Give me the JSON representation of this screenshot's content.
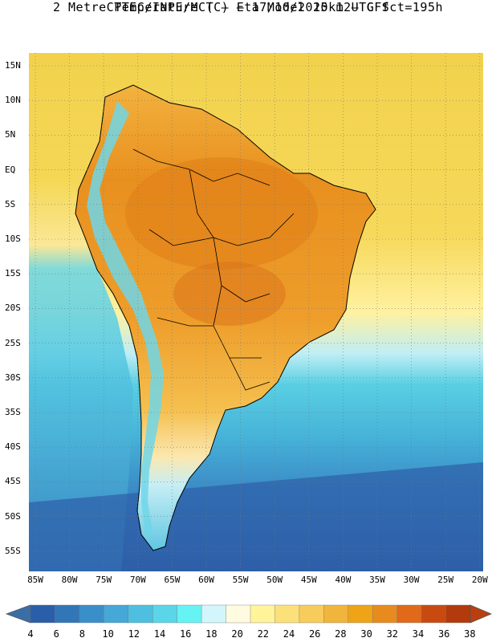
{
  "title_line1": "CPTEC/INPE/MCT –  Eta Model 15km – GFS",
  "title_line2": "2 Metre Temperature (C) – 17/10/2020 12UTC fct=195h",
  "lat_labels": [
    "15N",
    "10N",
    "5N",
    "EQ",
    "5S",
    "10S",
    "15S",
    "20S",
    "25S",
    "30S",
    "35S",
    "40S",
    "45S",
    "50S",
    "55S"
  ],
  "lon_labels": [
    "85W",
    "80W",
    "75W",
    "70W",
    "65W",
    "60W",
    "55W",
    "50W",
    "45W",
    "40W",
    "35W",
    "30W",
    "25W",
    "20W"
  ],
  "colorbar": {
    "labels": [
      "4",
      "6",
      "8",
      "10",
      "12",
      "14",
      "16",
      "18",
      "20",
      "22",
      "24",
      "26",
      "28",
      "30",
      "32",
      "34",
      "36",
      "38"
    ],
    "colors": [
      "#2a5ea8",
      "#3177b8",
      "#3a8fc8",
      "#45a8d6",
      "#4fbfe0",
      "#5ad6e8",
      "#66f3f4",
      "#d2f6fb",
      "#fffbe0",
      "#fff49a",
      "#fce07a",
      "#f8cc5a",
      "#f1b53d",
      "#eea416",
      "#e88b1f",
      "#e0691a",
      "#c84a10",
      "#b23a0c"
    ],
    "low_arrow_color": "#3a6ea8",
    "high_arrow_color": "#b8400e"
  },
  "map_colors": {
    "ocean_deep": "#2d5ea8",
    "ocean_mid": "#3a86c6",
    "ocean_light": "#4ab6d9",
    "ocean_cyan": "#5fd2e6",
    "ocean_tropic": "#f4d64e",
    "ocean_pale": "#fff1a0",
    "land_hot": "#e07f1a",
    "land_warm": "#efa332",
    "land_mild": "#f5c04f",
    "andes_cold": "#7adbea",
    "patagonia": "#6ec3df"
  }
}
